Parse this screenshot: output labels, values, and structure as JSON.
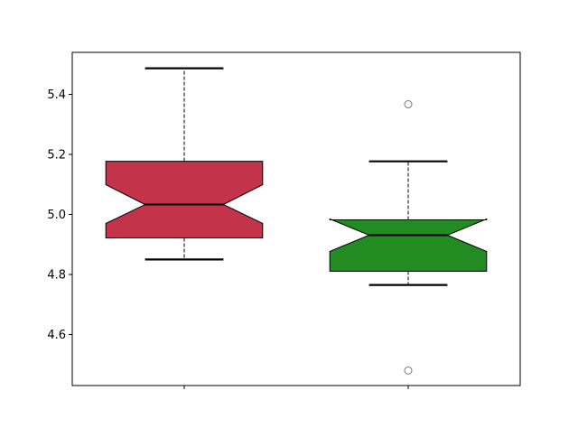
{
  "chart_data": {
    "type": "boxplot",
    "notched": true,
    "title": "",
    "xlabel": "",
    "ylabel": "",
    "ylim": [
      4.43,
      5.54
    ],
    "xlim": [
      0.5,
      2.5
    ],
    "yticks": [
      4.6,
      4.8,
      5.0,
      5.2,
      5.4
    ],
    "ytick_labels": [
      "4.6",
      "4.8",
      "5.0",
      "5.2",
      "5.4"
    ],
    "xticks": [
      1,
      2
    ],
    "xtick_labels": [
      "",
      ""
    ],
    "grid": false,
    "boxes": [
      {
        "position": 1,
        "color": "#c3334a",
        "whisker_low": 4.85,
        "q1": 4.922,
        "median": 5.033,
        "q3": 5.177,
        "whisker_high": 5.487,
        "notch_low": 4.97,
        "notch_high": 5.099,
        "outliers": []
      },
      {
        "position": 2,
        "color": "#228b22",
        "whisker_low": 4.765,
        "q1": 4.811,
        "median": 4.931,
        "q3": 4.982,
        "whisker_high": 5.177,
        "notch_low": 4.877,
        "notch_high": 4.985,
        "outliers": [
          5.367,
          4.48
        ]
      }
    ]
  }
}
